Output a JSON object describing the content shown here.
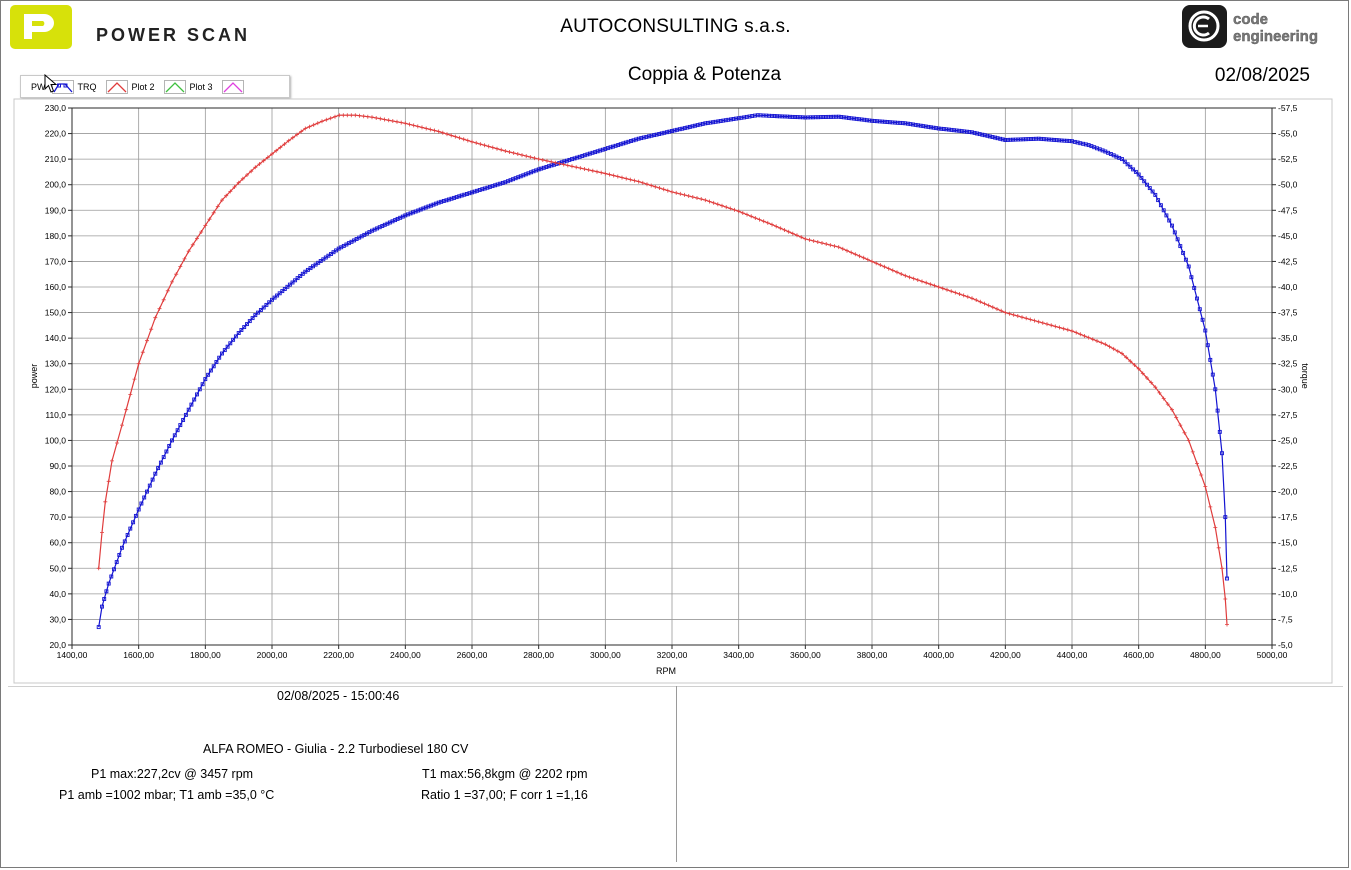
{
  "header": {
    "brand_left": "POWER SCAN",
    "brand_right_line1": "code",
    "brand_right_line2": "engineering",
    "company": "AUTOCONSULTING s.a.s.",
    "title": "Coppia & Potenza",
    "date": "02/08/2025"
  },
  "legend": {
    "items": [
      {
        "label": "PW",
        "color": ""
      },
      {
        "label": "TRQ",
        "color": "#1010d0"
      },
      {
        "label": "Plot 2",
        "color": "#e04040"
      },
      {
        "label": "Plot 3",
        "color": "#40c040"
      },
      {
        "label": "",
        "color": "#e040e0"
      }
    ]
  },
  "chart_data": {
    "type": "line",
    "xlabel": "RPM",
    "ylabel": "power",
    "y2label": "torque",
    "xlim": [
      1400,
      5000
    ],
    "ylim": [
      20,
      230
    ],
    "y2lim": [
      5,
      57.5
    ],
    "x_ticks": [
      "1400,00",
      "1600,00",
      "1800,00",
      "2000,00",
      "2200,00",
      "2400,00",
      "2600,00",
      "2800,00",
      "3000,00",
      "3200,00",
      "3400,00",
      "3600,00",
      "3800,00",
      "4000,00",
      "4200,00",
      "4400,00",
      "4600,00",
      "4800,00",
      "5000,00"
    ],
    "y_ticks": [
      "20,0",
      "30,0",
      "40,0",
      "50,0",
      "60,0",
      "70,0",
      "80,0",
      "90,0",
      "100,0",
      "110,0",
      "120,0",
      "130,0",
      "140,0",
      "150,0",
      "160,0",
      "170,0",
      "180,0",
      "190,0",
      "200,0",
      "210,0",
      "220,0",
      "230,0"
    ],
    "y2_ticks": [
      "-5,0",
      "-7,5",
      "-10,0",
      "-12,5",
      "-15,0",
      "-17,5",
      "-20,0",
      "-22,5",
      "-25,0",
      "-27,5",
      "-30,0",
      "-32,5",
      "-35,0",
      "-37,5",
      "-40,0",
      "-42,5",
      "-45,0",
      "-47,5",
      "-50,0",
      "-52,5",
      "-55,0",
      "-57,5"
    ],
    "grid": true,
    "series": [
      {
        "name": "TRQ",
        "axis": "left",
        "color": "#1414d2",
        "points": [
          [
            1480,
            27
          ],
          [
            1490,
            35
          ],
          [
            1510,
            44
          ],
          [
            1550,
            58
          ],
          [
            1600,
            73
          ],
          [
            1650,
            87
          ],
          [
            1700,
            100
          ],
          [
            1750,
            112
          ],
          [
            1800,
            124
          ],
          [
            1850,
            134
          ],
          [
            1900,
            142
          ],
          [
            1950,
            149
          ],
          [
            2000,
            155
          ],
          [
            2100,
            166
          ],
          [
            2200,
            175
          ],
          [
            2300,
            182
          ],
          [
            2400,
            188
          ],
          [
            2500,
            193
          ],
          [
            2600,
            197
          ],
          [
            2700,
            201
          ],
          [
            2800,
            206
          ],
          [
            2900,
            210
          ],
          [
            3000,
            214
          ],
          [
            3100,
            218
          ],
          [
            3200,
            221
          ],
          [
            3300,
            224
          ],
          [
            3400,
            226
          ],
          [
            3457,
            227.2
          ],
          [
            3500,
            226.9
          ],
          [
            3600,
            226.3
          ],
          [
            3700,
            226.6
          ],
          [
            3800,
            225
          ],
          [
            3900,
            224
          ],
          [
            4000,
            222
          ],
          [
            4100,
            220.5
          ],
          [
            4200,
            217.5
          ],
          [
            4300,
            218
          ],
          [
            4400,
            217
          ],
          [
            4450,
            215.5
          ],
          [
            4500,
            213
          ],
          [
            4550,
            210
          ],
          [
            4600,
            204
          ],
          [
            4650,
            196
          ],
          [
            4700,
            184
          ],
          [
            4750,
            168
          ],
          [
            4800,
            143
          ],
          [
            4830,
            120
          ],
          [
            4850,
            95
          ],
          [
            4860,
            70
          ],
          [
            4865,
            46
          ]
        ]
      },
      {
        "name": "Plot 2",
        "axis": "right",
        "color": "#e03c3c",
        "points": [
          [
            1480,
            12.5
          ],
          [
            1490,
            16
          ],
          [
            1500,
            19
          ],
          [
            1520,
            23
          ],
          [
            1550,
            26.5
          ],
          [
            1600,
            32.5
          ],
          [
            1650,
            37
          ],
          [
            1700,
            40.5
          ],
          [
            1750,
            43.5
          ],
          [
            1800,
            46
          ],
          [
            1850,
            48.5
          ],
          [
            1900,
            50.2
          ],
          [
            1950,
            51.7
          ],
          [
            2000,
            53
          ],
          [
            2050,
            54.3
          ],
          [
            2100,
            55.5
          ],
          [
            2150,
            56.2
          ],
          [
            2202,
            56.8
          ],
          [
            2250,
            56.8
          ],
          [
            2300,
            56.6
          ],
          [
            2400,
            56
          ],
          [
            2500,
            55.2
          ],
          [
            2600,
            54.2
          ],
          [
            2700,
            53.3
          ],
          [
            2800,
            52.5
          ],
          [
            2900,
            51.8
          ],
          [
            3000,
            51.1
          ],
          [
            3100,
            50.3
          ],
          [
            3200,
            49.3
          ],
          [
            3300,
            48.5
          ],
          [
            3400,
            47.4
          ],
          [
            3500,
            46.1
          ],
          [
            3600,
            44.7
          ],
          [
            3700,
            43.9
          ],
          [
            3800,
            42.5
          ],
          [
            3900,
            41.1
          ],
          [
            4000,
            40
          ],
          [
            4100,
            38.9
          ],
          [
            4200,
            37.5
          ],
          [
            4300,
            36.6
          ],
          [
            4400,
            35.7
          ],
          [
            4500,
            34.4
          ],
          [
            4550,
            33.5
          ],
          [
            4600,
            32
          ],
          [
            4650,
            30.2
          ],
          [
            4700,
            28
          ],
          [
            4750,
            25
          ],
          [
            4800,
            20.5
          ],
          [
            4830,
            16.5
          ],
          [
            4850,
            12.5
          ],
          [
            4860,
            9.5
          ],
          [
            4865,
            7
          ]
        ]
      }
    ]
  },
  "info": {
    "timestamp": "02/08/2025 - 15:00:46",
    "vehicle": "ALFA ROMEO - Giulia - 2.2 Turbodiesel 180 CV",
    "p1_max": "P1 max:227,2cv @ 3457 rpm",
    "t1_max": "T1 max:56,8kgm @ 2202 rpm",
    "ambient": "P1 amb =1002 mbar; T1 amb =35,0 °C",
    "ratio": "Ratio 1 =37,00; F corr 1 =1,16"
  }
}
